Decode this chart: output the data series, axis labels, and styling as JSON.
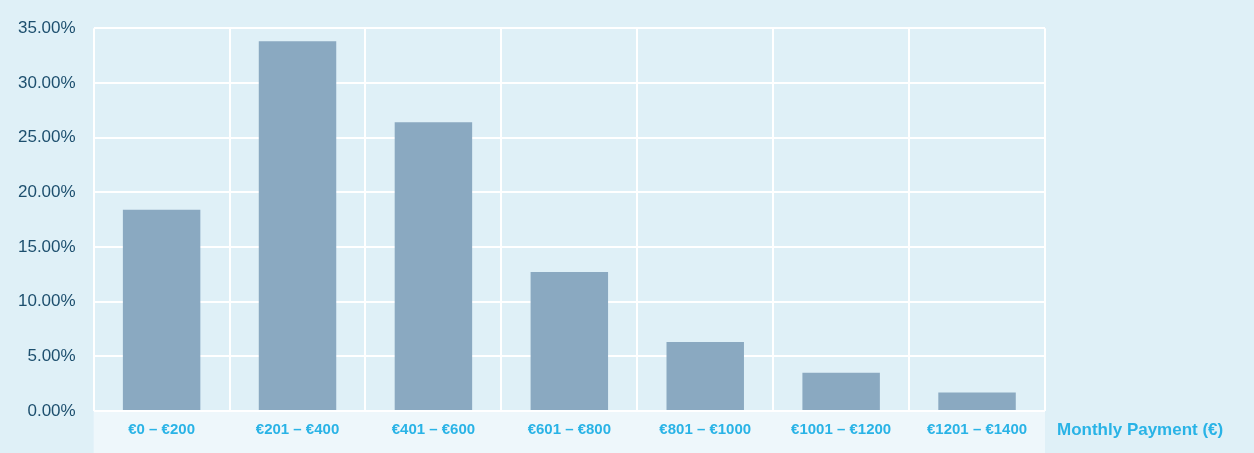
{
  "chart_data": {
    "type": "bar",
    "xlabel": "Monthly Payment (€)",
    "categories": [
      "€0 – €200",
      "€201 – €400",
      "€401 – €600",
      "€601 – €800",
      "€801 – €1000",
      "€1001 – €1200",
      "€1201 – €1400"
    ],
    "values": [
      18.4,
      33.8,
      26.4,
      12.7,
      6.3,
      3.5,
      1.7
    ],
    "color": "#8aa9c1",
    "ylim": [
      0,
      35
    ],
    "yticks": [
      {
        "value": 0,
        "label": "0.00%"
      },
      {
        "value": 5,
        "label": "5.00%"
      },
      {
        "value": 10,
        "label": "10.00%"
      },
      {
        "value": 15,
        "label": "15.00%"
      },
      {
        "value": 20,
        "label": "20.00%"
      },
      {
        "value": 25,
        "label": "25.00%"
      },
      {
        "value": 30,
        "label": "30.00%"
      },
      {
        "value": 35,
        "label": "35.00%"
      }
    ],
    "grid": true,
    "legend": false
  }
}
